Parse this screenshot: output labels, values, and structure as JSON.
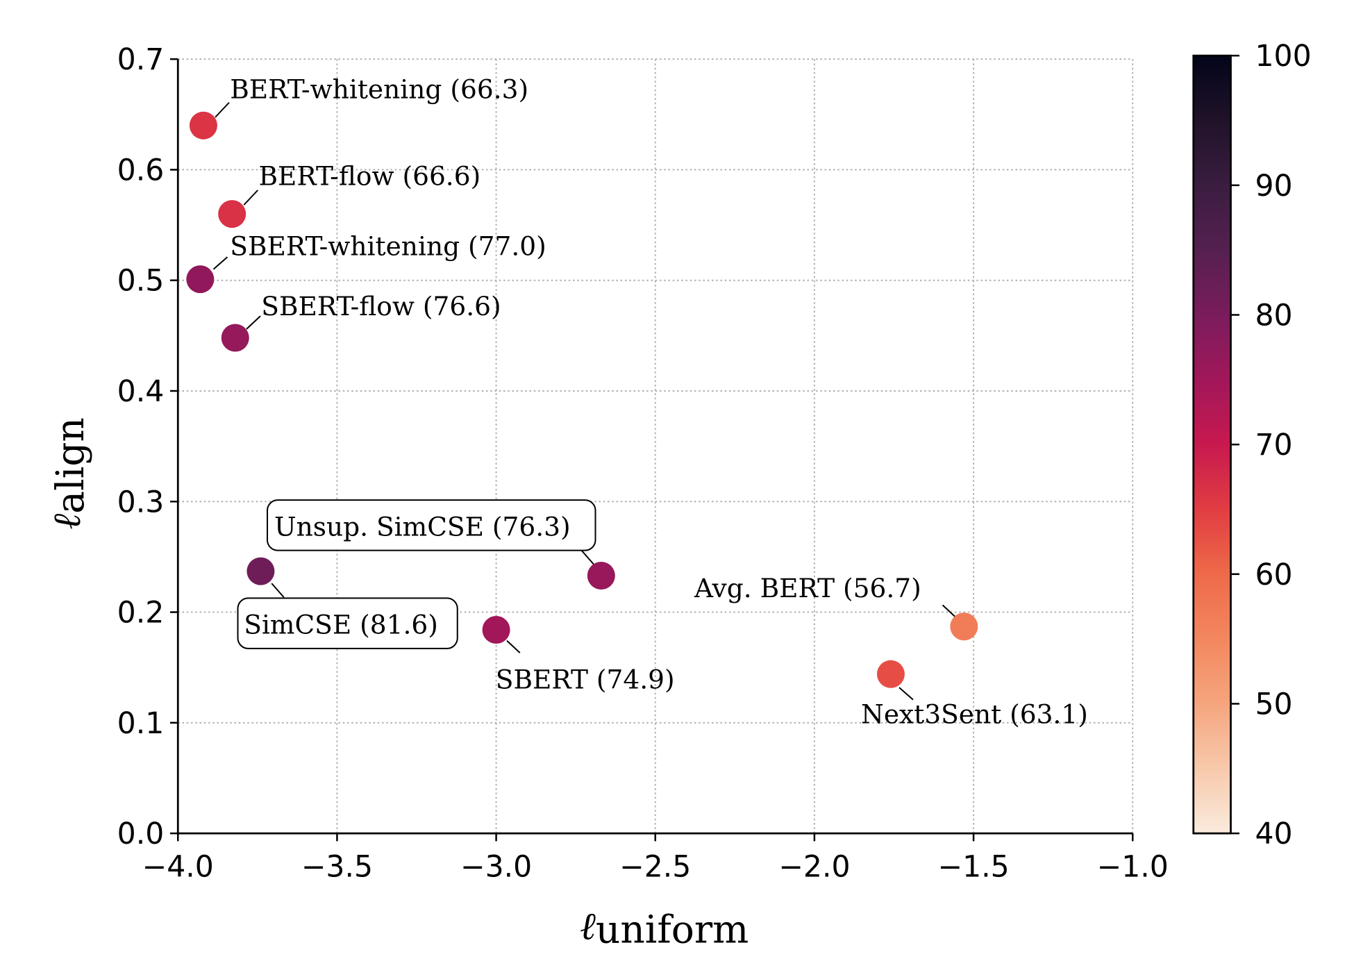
{
  "chart_data": {
    "type": "scatter",
    "xlabel": "ℓ",
    "xlabel_sub": "uniform",
    "ylabel": "ℓ",
    "ylabel_sub": "align",
    "xlim": [
      -4.0,
      -1.0
    ],
    "ylim": [
      0.0,
      0.7
    ],
    "xticks": [
      "−4.0",
      "−3.5",
      "−3.0",
      "−2.5",
      "−2.0",
      "−1.5",
      "−1.0"
    ],
    "yticks": [
      "0.0",
      "0.1",
      "0.2",
      "0.3",
      "0.4",
      "0.5",
      "0.6",
      "0.7"
    ],
    "grid": true,
    "colormap": "rocket_r",
    "colorbar": {
      "range": [
        40,
        100
      ],
      "ticks": [
        "40",
        "50",
        "60",
        "70",
        "80",
        "90",
        "100"
      ]
    },
    "points": [
      {
        "label": "BERT-whitening (66.3)",
        "x": -3.92,
        "y": 0.64,
        "score": 66.3
      },
      {
        "label": "BERT-flow (66.6)",
        "x": -3.83,
        "y": 0.56,
        "score": 66.6
      },
      {
        "label": "SBERT-whitening (77.0)",
        "x": -3.93,
        "y": 0.501,
        "score": 77.0
      },
      {
        "label": "SBERT-flow (76.6)",
        "x": -3.82,
        "y": 0.448,
        "score": 76.6
      },
      {
        "label": "SimCSE (81.6)",
        "x": -3.74,
        "y": 0.237,
        "score": 81.6,
        "boxed": true
      },
      {
        "label": "Unsup. SimCSE (76.3)",
        "x": -2.67,
        "y": 0.233,
        "score": 76.3,
        "boxed": true
      },
      {
        "label": "SBERT (74.9)",
        "x": -3.0,
        "y": 0.184,
        "score": 74.9
      },
      {
        "label": "Avg. BERT (56.7)",
        "x": -1.53,
        "y": 0.187,
        "score": 56.7
      },
      {
        "label": "Next3Sent (63.1)",
        "x": -1.76,
        "y": 0.144,
        "score": 63.1
      }
    ]
  }
}
